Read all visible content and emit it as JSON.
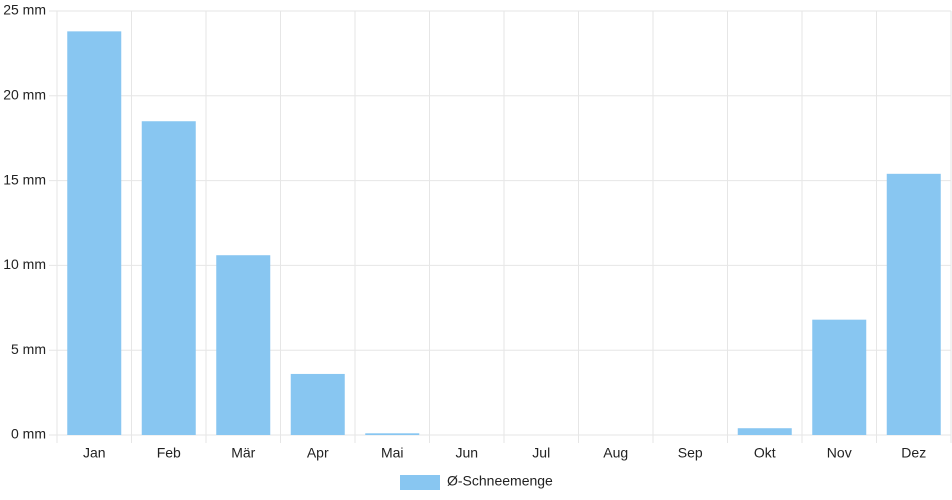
{
  "chart_data": {
    "type": "bar",
    "categories": [
      "Jan",
      "Feb",
      "Mär",
      "Apr",
      "Mai",
      "Jun",
      "Jul",
      "Aug",
      "Sep",
      "Okt",
      "Nov",
      "Dez"
    ],
    "series": [
      {
        "name": "Ø-Schneemenge",
        "color": "#88c6f1",
        "values": [
          23.8,
          18.5,
          10.6,
          3.6,
          0.1,
          0,
          0,
          0,
          0,
          0.4,
          6.8,
          15.4
        ]
      }
    ],
    "ylim": [
      0,
      25
    ],
    "yticks": [
      {
        "value": 0,
        "label": "0 mm"
      },
      {
        "value": 5,
        "label": "5 mm"
      },
      {
        "value": 10,
        "label": "10 mm"
      },
      {
        "value": 15,
        "label": "15 mm"
      },
      {
        "value": 20,
        "label": "20 mm"
      },
      {
        "value": 25,
        "label": "25 mm"
      }
    ],
    "grid": true,
    "legend": "bottom"
  }
}
